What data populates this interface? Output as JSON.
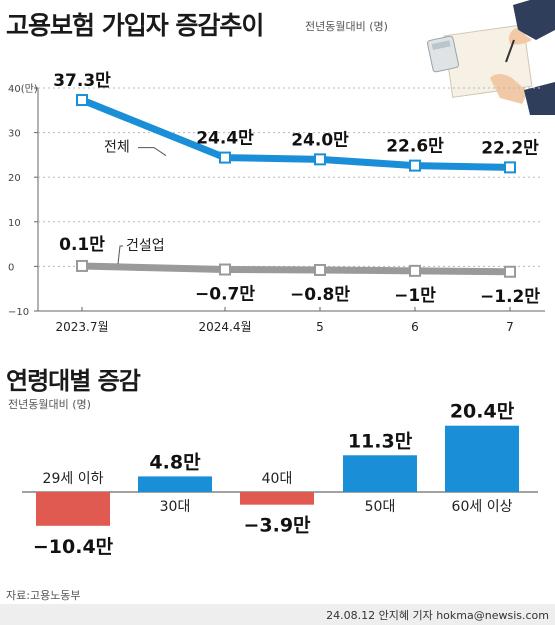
{
  "header": {
    "title": "고용보험 가입자 증감추이",
    "subtitle": "전년동월대비 (명)"
  },
  "chart_data": [
    {
      "type": "line",
      "title": "고용보험 가입자 증감추이",
      "subtitle": "전년동월대비 (명)",
      "x": [
        "2023.7월",
        "2024.4월",
        "5",
        "6",
        "7"
      ],
      "y_ticks": [
        "40(만)",
        "30",
        "20",
        "10",
        "0",
        "−10"
      ],
      "ylim": [
        -10,
        40
      ],
      "series": [
        {
          "name": "전체",
          "values": [
            37.3,
            24.4,
            24.0,
            22.6,
            22.2
          ],
          "labels": [
            "37.3만",
            "24.4만",
            "24.0만",
            "22.6만",
            "22.2만"
          ],
          "color": "#1a8fd8"
        },
        {
          "name": "건설업",
          "values": [
            0.1,
            -0.7,
            -0.8,
            -1.0,
            -1.2
          ],
          "labels": [
            "0.1만",
            "−0.7만",
            "−0.8만",
            "−1만",
            "−1.2만"
          ],
          "color": "#9a9a9a"
        }
      ]
    },
    {
      "type": "bar",
      "title": "연령대별 증감",
      "subtitle": "전년동월대비 (명)",
      "categories": [
        "29세 이하",
        "30대",
        "40대",
        "50대",
        "60세 이상"
      ],
      "values": [
        -10.4,
        4.8,
        -3.9,
        11.3,
        20.4
      ],
      "labels": [
        "−10.4만",
        "4.8만",
        "−3.9만",
        "11.3만",
        "20.4만"
      ],
      "colors": {
        "positive": "#1a8fd8",
        "negative": "#e05a52"
      }
    }
  ],
  "footer": {
    "source": "자료:고용노동부",
    "credit": "24.08.12 안지혜 기자 hokma@newsis.com"
  },
  "decoration": {
    "icon": "hands-with-calculator-icon"
  }
}
